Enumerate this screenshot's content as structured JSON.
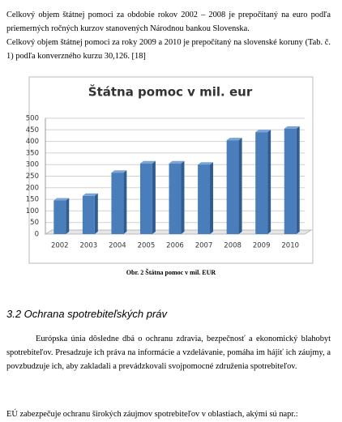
{
  "paragraphs": [
    "Celkový objem štátnej pomoci za obdobie rokov 2002 – 2008 je prepočítaný na euro podľa priemerných ročných kurzov stanovených Národnou bankou Slovenska.",
    "Celkový objem štátnej pomoci za roky 2009 a 2010 je prepočítaný na slovenské koruny (Tab. č. 1) podľa konverzného kurzu 30,126. [18]"
  ],
  "chart_data": {
    "type": "bar",
    "title": "Štátna pomoc v mil. eur",
    "categories": [
      "2002",
      "2003",
      "2004",
      "2005",
      "2006",
      "2007",
      "2008",
      "2009",
      "2010"
    ],
    "values": [
      145,
      165,
      265,
      305,
      305,
      300,
      405,
      440,
      455
    ],
    "color": "#4a7ebb",
    "ylim": [
      0,
      500
    ],
    "yticks": [
      0,
      50,
      100,
      150,
      200,
      250,
      300,
      350,
      400,
      450,
      500
    ],
    "grid": true
  },
  "caption": "Obr. 2 Štátna pomoc v mil. EUR",
  "section": {
    "heading": "3.2 Ochrana spotrebiteľských práv",
    "paragraphs": [
      "Európska únia dôsledne dbá o ochranu zdravia, bezpečnosť a ekonomický blahobyt spotrebiteľov. Presadzuje ich práva na informácie a vzdelávanie, pomáha im hájiť ich záujmy, a povzbudzuje ich, aby zakladali a prevádzkovali svojpomocné združenia spotrebiteľov.",
      "EÚ zabezpečuje ochranu širokých záujmov spotrebiteľov v oblastiach, akými sú napr.:"
    ]
  }
}
